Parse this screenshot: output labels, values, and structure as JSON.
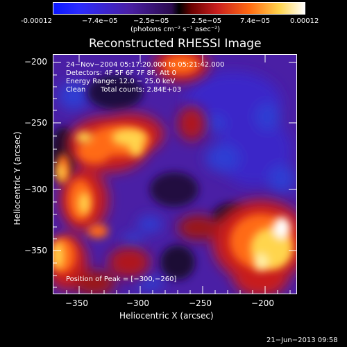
{
  "colorbar": {
    "ticks": [
      "-0.00012",
      "−7.4e−05",
      "−2.5e−05",
      "2.5e−05",
      "7.4e−05",
      "0.00012"
    ],
    "unit_label": "(photons cm⁻² s⁻¹ asec⁻²)"
  },
  "plot": {
    "title": "Reconstructed RHESSI Image",
    "x_label": "Heliocentric X (arcsec)",
    "y_label": "Heliocentric Y (arcsec)",
    "x_ticks": [
      "−350",
      "−300",
      "−250",
      "−200"
    ],
    "y_ticks": [
      "−200",
      "−250",
      "−300",
      "−350"
    ]
  },
  "annotations": {
    "time_range": "24−Nov−2004 05:17:20.000 to 05:21:42.000",
    "detectors": "Detectors: 4F 5F 6F 7F 8F, Att 0",
    "energy_range": "Energy Range: 12.0 − 25.0 keV",
    "algorithm": "Clean",
    "total_counts": "Total counts: 2.84E+03",
    "peak_position": "Position of Peak = [−300,−260]"
  },
  "footer": {
    "timestamp": "21−Jun−2013 09:58"
  },
  "colors": {
    "background": "#000000",
    "map_purple": "#4a1fa5",
    "map_red": "#c81e1e",
    "map_orange": "#ff6a12",
    "map_yellow": "#ffd54d",
    "map_blue": "#2d3ed3"
  }
}
